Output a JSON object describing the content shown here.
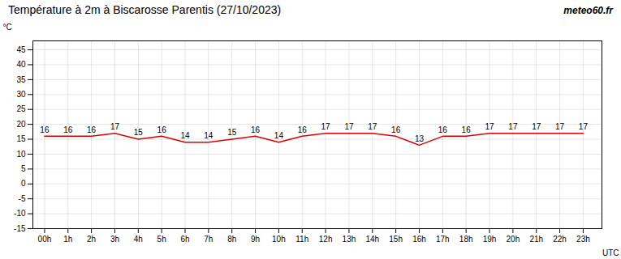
{
  "chart_data": {
    "type": "line",
    "title": "Température à 2m à Biscarosse Parentis (27/10/2023)",
    "ylabel": "°C",
    "xlabel": "UTC",
    "annotations": [
      "meteo60.fr"
    ],
    "x": [
      0,
      1,
      2,
      3,
      4,
      5,
      6,
      7,
      8,
      9,
      10,
      11,
      12,
      13,
      14,
      15,
      16,
      17,
      18,
      19,
      20,
      21,
      22,
      23
    ],
    "values": [
      16,
      16,
      16,
      17,
      15,
      16,
      14,
      14,
      15,
      16,
      14,
      16,
      17,
      17,
      17,
      16,
      13,
      16,
      16,
      17,
      17,
      17,
      17,
      17
    ],
    "color": "#dd0000",
    "xlim": [
      -0.5,
      23.8
    ],
    "xticks": [
      {
        "value": 0,
        "label": "00h"
      },
      {
        "value": 1,
        "label": "1h"
      },
      {
        "value": 2,
        "label": "2h"
      },
      {
        "value": 3,
        "label": "3h"
      },
      {
        "value": 4,
        "label": "4h"
      },
      {
        "value": 5,
        "label": "5h"
      },
      {
        "value": 6,
        "label": "6h"
      },
      {
        "value": 7,
        "label": "7h"
      },
      {
        "value": 8,
        "label": "8h"
      },
      {
        "value": 9,
        "label": "9h"
      },
      {
        "value": 10,
        "label": "10h"
      },
      {
        "value": 11,
        "label": "11h"
      },
      {
        "value": 12,
        "label": "12h"
      },
      {
        "value": 13,
        "label": "13h"
      },
      {
        "value": 14,
        "label": "14h"
      },
      {
        "value": 15,
        "label": "15h"
      },
      {
        "value": 16,
        "label": "16h"
      },
      {
        "value": 17,
        "label": "17h"
      },
      {
        "value": 18,
        "label": "18h"
      },
      {
        "value": 19,
        "label": "19h"
      },
      {
        "value": 20,
        "label": "20h"
      },
      {
        "value": 21,
        "label": "21h"
      },
      {
        "value": 22,
        "label": "22h"
      },
      {
        "value": 23,
        "label": "23h"
      }
    ],
    "ylim": [
      -15,
      48
    ],
    "yticks": [
      -15,
      -10,
      -5,
      0,
      5,
      10,
      15,
      20,
      25,
      30,
      35,
      40,
      45
    ],
    "grid": true,
    "data_labels": true
  }
}
